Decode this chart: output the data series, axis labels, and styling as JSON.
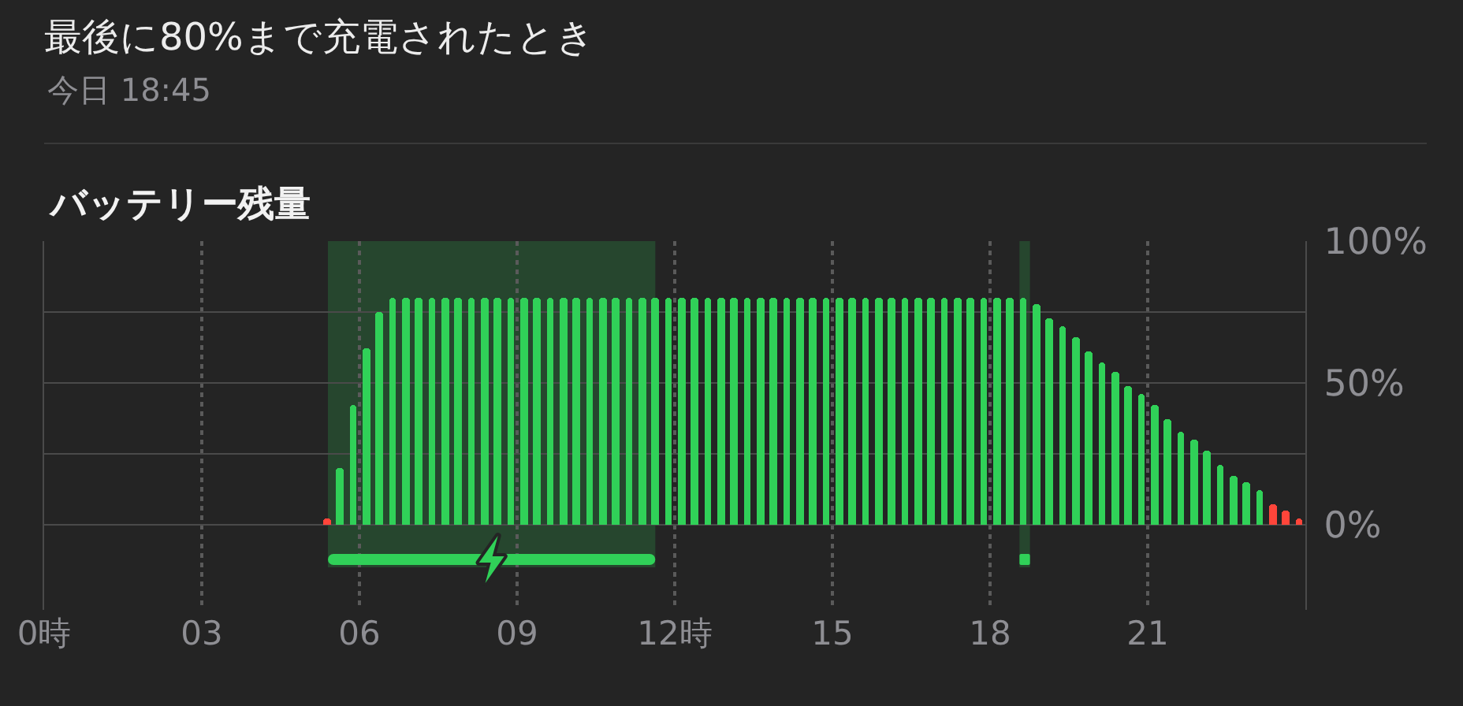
{
  "chart_data": {
    "type": "bar",
    "title": "最後に80%まで充電されたとき",
    "subtitle": "今日 18:45",
    "ylabel": "バッテリー残量",
    "x": [
      5.375,
      5.625,
      5.875,
      6.125,
      6.375,
      6.625,
      6.875,
      7.125,
      7.375,
      7.625,
      7.875,
      8.125,
      8.375,
      8.625,
      8.875,
      9.125,
      9.375,
      9.625,
      9.875,
      10.125,
      10.375,
      10.625,
      10.875,
      11.125,
      11.375,
      11.625,
      11.875,
      12.125,
      12.375,
      12.625,
      12.875,
      13.125,
      13.375,
      13.625,
      13.875,
      14.125,
      14.375,
      14.625,
      14.875,
      15.125,
      15.375,
      15.625,
      15.875,
      16.125,
      16.375,
      16.625,
      16.875,
      17.125,
      17.375,
      17.625,
      17.875,
      18.125,
      18.375,
      18.625,
      18.875,
      19.125,
      19.375,
      19.625,
      19.875,
      20.125,
      20.375,
      20.625,
      20.875,
      21.125,
      21.375,
      21.625,
      21.875,
      22.125,
      22.375,
      22.625,
      22.875,
      23.125,
      23.375,
      23.625,
      23.875
    ],
    "values": [
      2,
      20,
      42,
      62,
      75,
      80,
      80,
      80,
      80,
      80,
      80,
      80,
      80,
      80,
      80,
      80,
      80,
      80,
      80,
      80,
      80,
      80,
      80,
      80,
      80,
      80,
      80,
      80,
      80,
      80,
      80,
      80,
      80,
      80,
      80,
      80,
      80,
      80,
      80,
      80,
      80,
      80,
      80,
      80,
      80,
      80,
      80,
      80,
      80,
      80,
      80,
      80,
      80,
      80,
      78,
      73,
      70,
      66,
      61,
      57,
      54,
      49,
      46,
      42,
      37,
      33,
      30,
      26,
      21,
      17,
      15,
      12,
      7,
      5,
      2
    ],
    "colors": [
      "#ff453a",
      "#30d158",
      "#30d158",
      "#30d158",
      "#30d158",
      "#30d158",
      "#30d158",
      "#30d158",
      "#30d158",
      "#30d158",
      "#30d158",
      "#30d158",
      "#30d158",
      "#30d158",
      "#30d158",
      "#30d158",
      "#30d158",
      "#30d158",
      "#30d158",
      "#30d158",
      "#30d158",
      "#30d158",
      "#30d158",
      "#30d158",
      "#30d158",
      "#30d158",
      "#30d158",
      "#30d158",
      "#30d158",
      "#30d158",
      "#30d158",
      "#30d158",
      "#30d158",
      "#30d158",
      "#30d158",
      "#30d158",
      "#30d158",
      "#30d158",
      "#30d158",
      "#30d158",
      "#30d158",
      "#30d158",
      "#30d158",
      "#30d158",
      "#30d158",
      "#30d158",
      "#30d158",
      "#30d158",
      "#30d158",
      "#30d158",
      "#30d158",
      "#30d158",
      "#30d158",
      "#30d158",
      "#30d158",
      "#30d158",
      "#30d158",
      "#30d158",
      "#30d158",
      "#30d158",
      "#30d158",
      "#30d158",
      "#30d158",
      "#30d158",
      "#30d158",
      "#30d158",
      "#30d158",
      "#30d158",
      "#30d158",
      "#30d158",
      "#30d158",
      "#30d158",
      "#ff453a",
      "#ff453a",
      "#ff453a"
    ],
    "xlim": [
      0,
      24
    ],
    "xticks": [
      {
        "value": 0,
        "label": "0時"
      },
      {
        "value": 3,
        "label": "03"
      },
      {
        "value": 6,
        "label": "06"
      },
      {
        "value": 9,
        "label": "09"
      },
      {
        "value": 12,
        "label": "12時"
      },
      {
        "value": 15,
        "label": "15"
      },
      {
        "value": 18,
        "label": "18"
      },
      {
        "value": 21,
        "label": "21"
      }
    ],
    "ylim": [
      -30,
      100
    ],
    "yticks": [
      {
        "value": 0,
        "label": "0%"
      },
      {
        "value": 25,
        "label": null
      },
      {
        "value": 50,
        "label": "50%"
      },
      {
        "value": 75,
        "label": null
      },
      {
        "value": 100,
        "label": "100%"
      }
    ],
    "bands": [
      {
        "axis": "x",
        "from": 5.4,
        "to": 11.63,
        "color": "#30d158"
      },
      {
        "axis": "x",
        "from": 18.56,
        "to": 18.76,
        "color": "#30d158"
      }
    ],
    "grid": true
  }
}
